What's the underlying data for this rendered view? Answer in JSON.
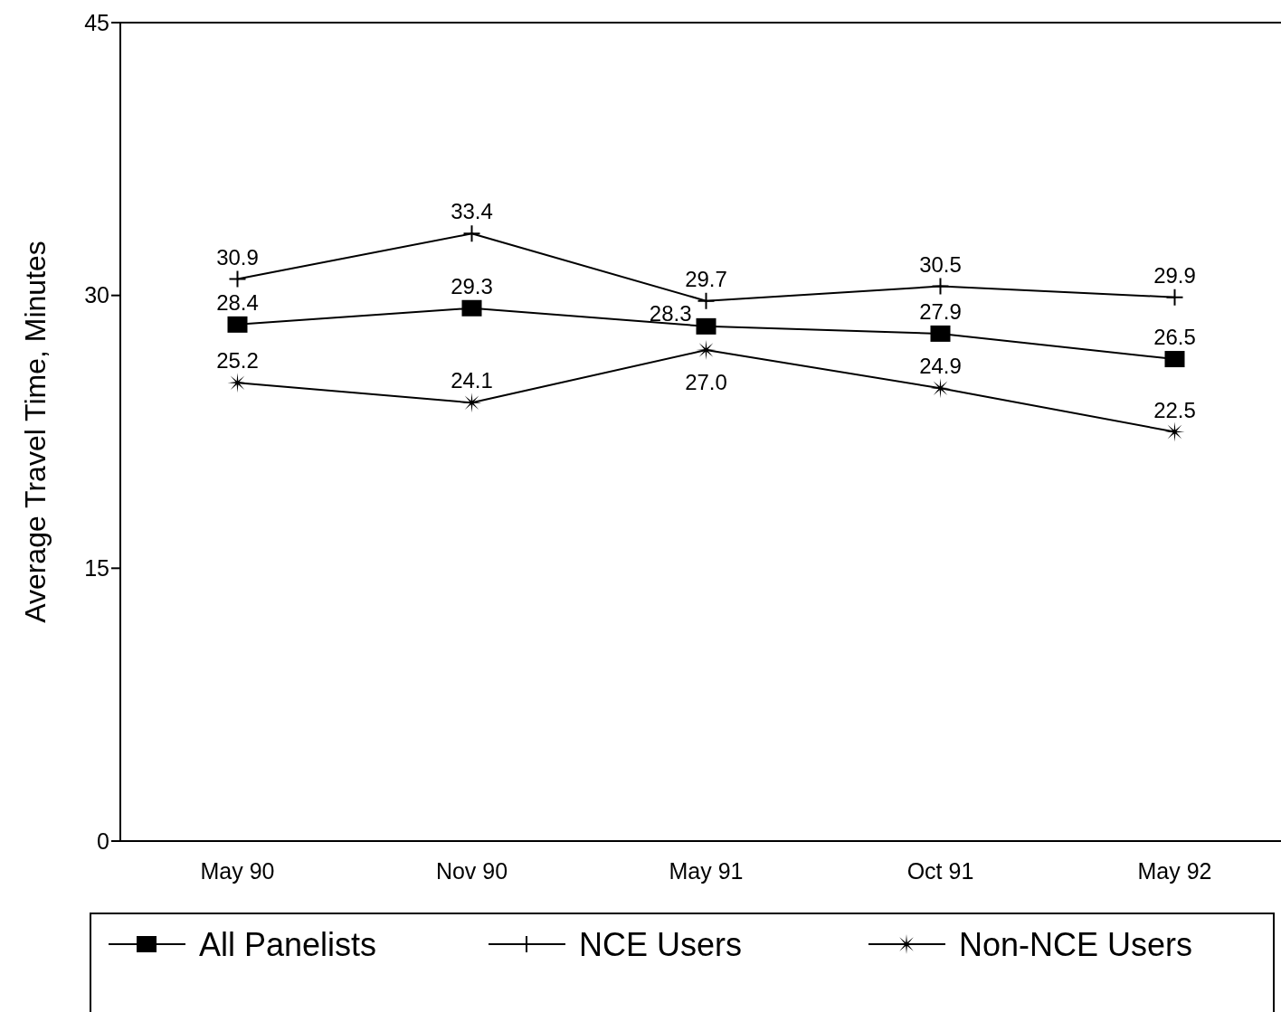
{
  "chart_data": {
    "type": "line",
    "ylabel": "Average Travel Time, Minutes",
    "categories": [
      "May 90",
      "Nov 90",
      "May 91",
      "Oct 91",
      "May 92"
    ],
    "series": [
      {
        "name": "All Panelists",
        "color": "#000000",
        "marker": "square",
        "values": [
          28.4,
          29.3,
          28.3,
          27.9,
          26.5
        ],
        "value_labels": [
          "28.4",
          "29.3",
          "28.3",
          "27.9",
          "26.5"
        ]
      },
      {
        "name": "NCE Users",
        "color": "#000000",
        "marker": "cross",
        "values": [
          30.9,
          33.4,
          29.7,
          30.5,
          29.9
        ],
        "value_labels": [
          "30.9",
          "33.4",
          "29.7",
          "30.5",
          "29.9"
        ]
      },
      {
        "name": "Non-NCE Users",
        "color": "#000000",
        "marker": "star",
        "values": [
          25.2,
          24.1,
          27.0,
          24.9,
          22.5
        ],
        "value_labels": [
          "25.2",
          "24.1",
          "27.0",
          "24.9",
          "22.5"
        ]
      }
    ],
    "ylim": [
      0,
      45
    ],
    "yticks": [
      0,
      15,
      30,
      45
    ],
    "legend": "bottom",
    "grid": false,
    "line_style": "solid"
  }
}
